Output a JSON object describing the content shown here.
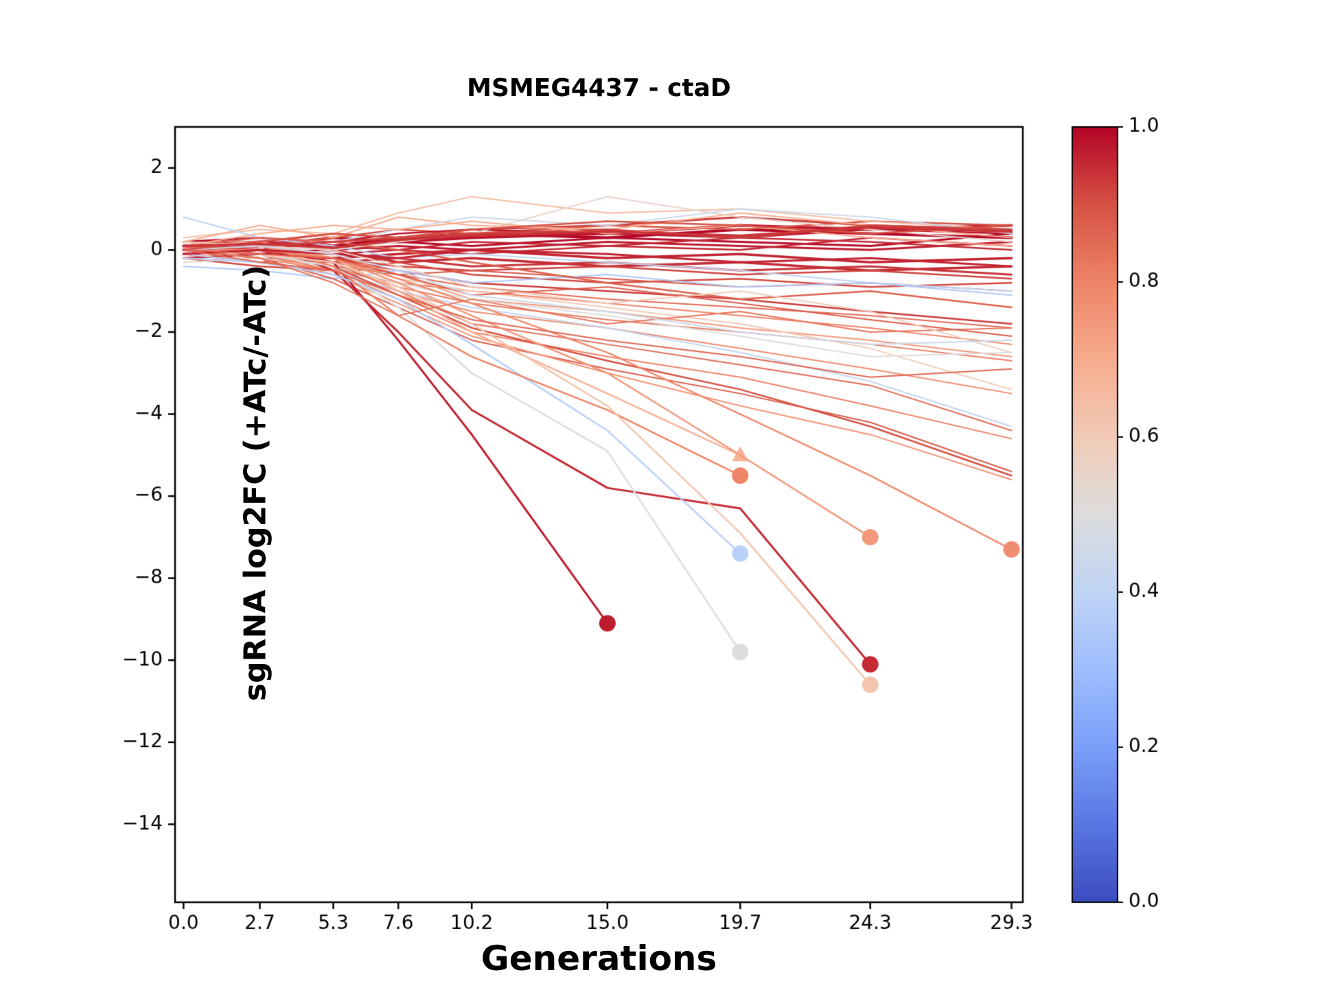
{
  "figure": {
    "title": "MSMEG4437 - ctaD",
    "xlabel": "Generations",
    "ylabel": "sgRNA log2FC (+ATc/-ATc)"
  },
  "chart_data": {
    "type": "line",
    "title": "MSMEG4437 - ctaD",
    "xlabel": "Generations",
    "ylabel": "sgRNA log2FC (+ATc/-ATc)",
    "xlim": [
      -0.3,
      29.7
    ],
    "ylim": [
      -15.9,
      3.0
    ],
    "grid": false,
    "x_ticks": [
      0.0,
      2.7,
      5.3,
      7.6,
      10.2,
      15.0,
      19.7,
      24.3,
      29.3
    ],
    "x_tick_labels": [
      "0.0",
      "2.7",
      "5.3",
      "7.6",
      "10.2",
      "15.0",
      "19.7",
      "24.3",
      "29.3"
    ],
    "y_ticks": [
      2,
      0,
      -2,
      -4,
      -6,
      -8,
      -10,
      -12,
      -14
    ],
    "y_tick_labels": [
      "2",
      "0",
      "−2",
      "−4",
      "−6",
      "−8",
      "−10",
      "−12",
      "−14"
    ],
    "x": [
      0.0,
      2.7,
      5.3,
      7.6,
      10.2,
      15.0,
      19.7,
      24.3,
      29.3
    ],
    "colorbar": {
      "ticks": [
        0.0,
        0.2,
        0.4,
        0.6,
        0.8,
        1.0
      ],
      "tick_labels": [
        "0.0",
        "0.2",
        "0.4",
        "0.6",
        "0.8",
        "1.0"
      ],
      "cmap": "coolwarm",
      "stops": [
        "#3B4CC0",
        "#5977E3",
        "#7B9FF9",
        "#9EBEFF",
        "#C0D4F5",
        "#DDDDDD",
        "#F2CBB7",
        "#F7AC8E",
        "#EE8468",
        "#D65244",
        "#B40426"
      ]
    },
    "series": [
      {
        "c": 1.0,
        "lw": 4,
        "y": [
          0.1,
          0.2,
          0.1,
          0.3,
          0.4,
          0.3,
          0.5,
          0.4,
          0.3
        ]
      },
      {
        "c": 0.98,
        "lw": 4,
        "y": [
          0.0,
          0.1,
          0.3,
          0.2,
          0.3,
          0.4,
          0.6,
          0.5,
          0.6
        ]
      },
      {
        "c": 0.96,
        "lw": 3.5,
        "y": [
          -0.1,
          0.0,
          -0.2,
          -0.1,
          0.0,
          -0.2,
          -0.1,
          -0.3,
          -0.2
        ]
      },
      {
        "c": 0.95,
        "lw": 3.5,
        "y": [
          0.1,
          -0.1,
          0.0,
          -0.3,
          -0.2,
          -0.4,
          -0.3,
          -0.5,
          -0.4
        ]
      },
      {
        "c": 0.99,
        "lw": 3,
        "y": [
          0.2,
          0.3,
          0.1,
          0.2,
          0.1,
          0.3,
          0.2,
          0.1,
          0.4
        ]
      },
      {
        "c": 0.94,
        "lw": 3,
        "y": [
          0.0,
          -0.2,
          -0.3,
          -0.2,
          -0.4,
          -0.3,
          -0.5,
          -0.4,
          -0.6
        ]
      },
      {
        "c": 0.97,
        "lw": 3,
        "y": [
          -0.2,
          -0.1,
          0.0,
          0.1,
          0.0,
          0.2,
          0.1,
          0.0,
          0.2
        ]
      },
      {
        "c": 0.93,
        "lw": 3,
        "y": [
          0.1,
          0.2,
          0.4,
          0.3,
          0.5,
          0.6,
          0.8,
          0.6,
          0.5
        ]
      },
      {
        "c": 0.96,
        "lw": 2.5,
        "y": [
          0.0,
          0.1,
          -0.1,
          0.0,
          0.2,
          0.1,
          0.0,
          0.3,
          0.1
        ]
      },
      {
        "c": 0.92,
        "lw": 2.5,
        "y": [
          -0.1,
          -0.3,
          -0.2,
          -0.4,
          -0.5,
          -0.4,
          -0.6,
          -0.5,
          -0.7
        ]
      },
      {
        "c": 0.9,
        "lw": 2.5,
        "y": [
          0.2,
          0.1,
          0.3,
          0.5,
          0.4,
          0.6,
          0.5,
          0.7,
          0.6
        ]
      },
      {
        "c": 0.95,
        "lw": 2.5,
        "y": [
          0.0,
          0.2,
          0.1,
          0.0,
          -0.1,
          0.1,
          0.3,
          0.2,
          0.0
        ]
      },
      {
        "c": 0.91,
        "lw": 2.5,
        "y": [
          -0.2,
          -0.4,
          -0.5,
          -0.3,
          -0.6,
          -0.8,
          -0.7,
          -0.9,
          -0.8
        ]
      },
      {
        "c": 0.98,
        "lw": 2.5,
        "y": [
          0.1,
          0.0,
          0.2,
          0.4,
          0.5,
          0.4,
          0.3,
          0.5,
          0.4
        ]
      },
      {
        "c": 0.89,
        "lw": 2,
        "y": [
          0.0,
          -0.1,
          -0.4,
          -0.6,
          -0.5,
          -0.7,
          -0.9,
          -0.8,
          -1.0
        ]
      },
      {
        "c": 0.93,
        "lw": 2.5,
        "y": [
          0.0,
          0.1,
          -0.2,
          -0.5,
          -0.8,
          -1.0,
          -1.2,
          -1.5,
          -1.8
        ]
      },
      {
        "c": 0.85,
        "lw": 2,
        "y": [
          0.1,
          0.0,
          -0.3,
          -0.6,
          -0.9,
          -1.2,
          -1.4,
          -1.6,
          -1.9
        ]
      },
      {
        "c": 0.8,
        "lw": 2,
        "y": [
          0.0,
          -0.2,
          -0.5,
          -0.8,
          -1.0,
          -1.3,
          -1.6,
          -1.9,
          -2.3
        ]
      },
      {
        "c": 0.75,
        "lw": 2,
        "y": [
          0.2,
          0.1,
          -0.1,
          -0.6,
          -1.2,
          -1.5,
          -1.9,
          -2.2,
          -2.6
        ]
      },
      {
        "c": 0.65,
        "lw": 2,
        "y": [
          0.3,
          0.5,
          0.4,
          0.9,
          1.3,
          0.9,
          1.0,
          0.7,
          0.5
        ]
      },
      {
        "c": 0.7,
        "lw": 2,
        "y": [
          0.2,
          0.6,
          0.3,
          0.8,
          0.6,
          0.5,
          0.9,
          0.6,
          0.3
        ]
      },
      {
        "c": 0.55,
        "lw": 2,
        "y": [
          -0.3,
          -0.2,
          0.0,
          0.2,
          0.4,
          1.3,
          0.8,
          0.5,
          0.2
        ]
      },
      {
        "c": 0.45,
        "lw": 2,
        "y": [
          0.1,
          0.3,
          0.2,
          0.5,
          0.8,
          0.6,
          1.0,
          0.8,
          0.4
        ]
      },
      {
        "c": 0.4,
        "lw": 2,
        "y": [
          0.8,
          0.3,
          0.1,
          -0.2,
          -0.1,
          -0.3,
          -0.5,
          -0.8,
          -1.0
        ]
      },
      {
        "c": 0.35,
        "lw": 2,
        "y": [
          -0.4,
          -0.5,
          -0.7,
          -0.5,
          -0.8,
          -0.6,
          -0.9,
          -0.8,
          -1.1
        ]
      },
      {
        "c": 0.82,
        "lw": 2,
        "y": [
          0.0,
          -0.1,
          -0.4,
          -0.9,
          -1.3,
          -1.7,
          -2.0,
          -2.3,
          -2.7
        ]
      },
      {
        "c": 0.6,
        "lw": 2,
        "y": [
          0.1,
          0.0,
          -0.2,
          -0.7,
          -1.0,
          -1.4,
          -1.8,
          -2.4,
          -3.4
        ]
      },
      {
        "c": 0.78,
        "lw": 2,
        "y": [
          0.0,
          -0.3,
          -0.6,
          -1.0,
          -1.5,
          -1.9,
          -2.4,
          -2.9,
          -3.5
        ]
      },
      {
        "c": 0.5,
        "lw": 2,
        "y": [
          0.0,
          -0.2,
          -0.4,
          -0.8,
          -1.2,
          -1.6,
          -2.1,
          -2.6,
          -2.5
        ]
      },
      {
        "c": 0.42,
        "lw": 2,
        "y": [
          -0.1,
          -0.3,
          -0.5,
          -1.0,
          -1.4,
          -1.9,
          -2.5,
          -3.2,
          -4.3
        ]
      },
      {
        "c": 0.85,
        "lw": 2,
        "y": [
          0.0,
          0.1,
          -0.3,
          -1.0,
          -1.8,
          -2.3,
          -2.8,
          -3.3,
          -4.4
        ]
      },
      {
        "c": 0.8,
        "lw": 2,
        "y": [
          0.1,
          -0.1,
          -0.5,
          -1.2,
          -2.0,
          -2.6,
          -3.1,
          -3.8,
          -4.6
        ]
      },
      {
        "c": 0.88,
        "lw": 2,
        "y": [
          0.0,
          -0.2,
          -0.7,
          -1.4,
          -2.2,
          -2.9,
          -3.5,
          -4.2,
          -5.4
        ]
      },
      {
        "c": 0.76,
        "lw": 2,
        "y": [
          0.0,
          -0.1,
          -0.6,
          -1.3,
          -2.1,
          -3.0,
          -3.8,
          -4.5,
          -5.6
        ]
      },
      {
        "c": 0.9,
        "lw": 2.5,
        "y": [
          0.1,
          0.0,
          -0.4,
          -1.1,
          -1.9,
          -2.7,
          -3.4,
          -4.3,
          -5.5
        ]
      },
      {
        "c": 0.97,
        "lw": 3,
        "marker": "circle",
        "x": [
          0.0,
          2.7,
          5.3,
          7.6,
          10.2,
          15.0
        ],
        "y": [
          0.0,
          0.0,
          -0.3,
          -2.2,
          -4.5,
          -9.1
        ]
      },
      {
        "c": 0.95,
        "lw": 3,
        "marker": "circle",
        "x": [
          0.0,
          2.7,
          5.3,
          7.6,
          10.2,
          15.0,
          19.7,
          24.3
        ],
        "y": [
          0.1,
          0.2,
          -0.5,
          -2.0,
          -3.9,
          -5.8,
          -6.3,
          -10.1
        ]
      },
      {
        "c": 0.5,
        "lw": 2.5,
        "marker": "circle",
        "x": [
          0.0,
          2.7,
          5.3,
          7.6,
          10.2,
          15.0,
          19.7
        ],
        "y": [
          0.0,
          -0.1,
          -0.4,
          -1.4,
          -3.0,
          -4.9,
          -9.8
        ]
      },
      {
        "c": 0.38,
        "lw": 2.5,
        "marker": "circle",
        "x": [
          0.0,
          2.7,
          5.3,
          7.6,
          10.2,
          15.0,
          19.7
        ],
        "y": [
          -0.2,
          -0.3,
          -0.6,
          -1.2,
          -2.3,
          -4.4,
          -7.4
        ]
      },
      {
        "c": 0.8,
        "lw": 2.5,
        "marker": "circle",
        "x": [
          0.0,
          2.7,
          5.3,
          7.6,
          10.2,
          15.0,
          19.7
        ],
        "y": [
          0.0,
          0.1,
          -0.4,
          -1.6,
          -2.6,
          -3.9,
          -5.5
        ]
      },
      {
        "c": 0.68,
        "lw": 2.5,
        "marker": "triangle",
        "x": [
          0.0,
          2.7,
          5.3,
          7.6,
          10.2,
          15.0,
          19.7
        ],
        "y": [
          0.1,
          0.2,
          -0.2,
          -1.0,
          -2.0,
          -3.5,
          -5.0
        ]
      },
      {
        "c": 0.75,
        "lw": 2.5,
        "marker": "circle",
        "x": [
          0.0,
          2.7,
          5.3,
          7.6,
          10.2,
          15.0,
          19.7,
          24.3
        ],
        "y": [
          0.0,
          0.1,
          -0.2,
          -0.8,
          -1.6,
          -3.0,
          -5.0,
          -7.0
        ]
      },
      {
        "c": 0.62,
        "lw": 2.5,
        "marker": "circle",
        "x": [
          0.0,
          2.7,
          5.3,
          7.6,
          10.2,
          15.0,
          19.7,
          24.3
        ],
        "y": [
          0.0,
          -0.1,
          -0.3,
          -0.9,
          -1.8,
          -3.8,
          -6.9,
          -10.6
        ]
      },
      {
        "c": 0.78,
        "lw": 2.5,
        "marker": "circle",
        "y": [
          0.0,
          0.0,
          -0.2,
          -0.7,
          -1.3,
          -2.5,
          -4.0,
          -5.5,
          -7.3
        ]
      },
      {
        "c": 0.83,
        "lw": 2,
        "y": [
          0.0,
          -0.2,
          -0.8,
          -1.6,
          -1.2,
          -1.8,
          -1.5,
          -2.0,
          -1.9
        ]
      },
      {
        "c": 0.87,
        "lw": 2.5,
        "y": [
          0.1,
          0.3,
          0.2,
          0.0,
          -0.3,
          -0.8,
          -1.2,
          -1.0,
          -1.4
        ]
      },
      {
        "c": 0.92,
        "lw": 3,
        "y": [
          0.0,
          0.1,
          0.2,
          0.3,
          0.4,
          0.5,
          0.3,
          0.6,
          0.5
        ]
      },
      {
        "c": 0.96,
        "lw": 3,
        "y": [
          -0.1,
          0.0,
          -0.1,
          -0.2,
          0.0,
          -0.1,
          -0.3,
          -0.2,
          -0.4
        ]
      },
      {
        "c": 0.7,
        "lw": 2,
        "y": [
          0.1,
          0.4,
          0.6,
          0.5,
          0.7,
          0.4,
          0.6,
          0.3,
          0.1
        ]
      },
      {
        "c": 0.88,
        "lw": 2,
        "y": [
          0.0,
          -0.1,
          -0.2,
          -0.6,
          -1.1,
          -0.9,
          -1.3,
          -1.7,
          -2.1
        ]
      },
      {
        "c": 0.58,
        "lw": 2,
        "y": [
          0.2,
          0.1,
          0.0,
          -0.4,
          -0.9,
          -1.3,
          -1.0,
          -1.5,
          -2.5
        ]
      },
      {
        "c": 0.44,
        "lw": 2,
        "y": [
          0.0,
          0.1,
          -0.1,
          -0.5,
          -1.1,
          -1.5,
          -2.0,
          -2.3,
          -2.2
        ]
      },
      {
        "c": 0.9,
        "lw": 2.5,
        "y": [
          0.0,
          0.2,
          0.4,
          0.3,
          0.5,
          0.7,
          0.6,
          0.4,
          0.6
        ]
      },
      {
        "c": 0.94,
        "lw": 3.5,
        "y": [
          0.1,
          0.15,
          0.05,
          0.25,
          0.35,
          0.45,
          0.35,
          0.55,
          0.45
        ]
      },
      {
        "c": 0.86,
        "lw": 2,
        "y": [
          0.0,
          -0.3,
          -0.5,
          -1.1,
          -1.7,
          -2.2,
          -2.6,
          -3.1,
          -2.9
        ]
      }
    ]
  }
}
